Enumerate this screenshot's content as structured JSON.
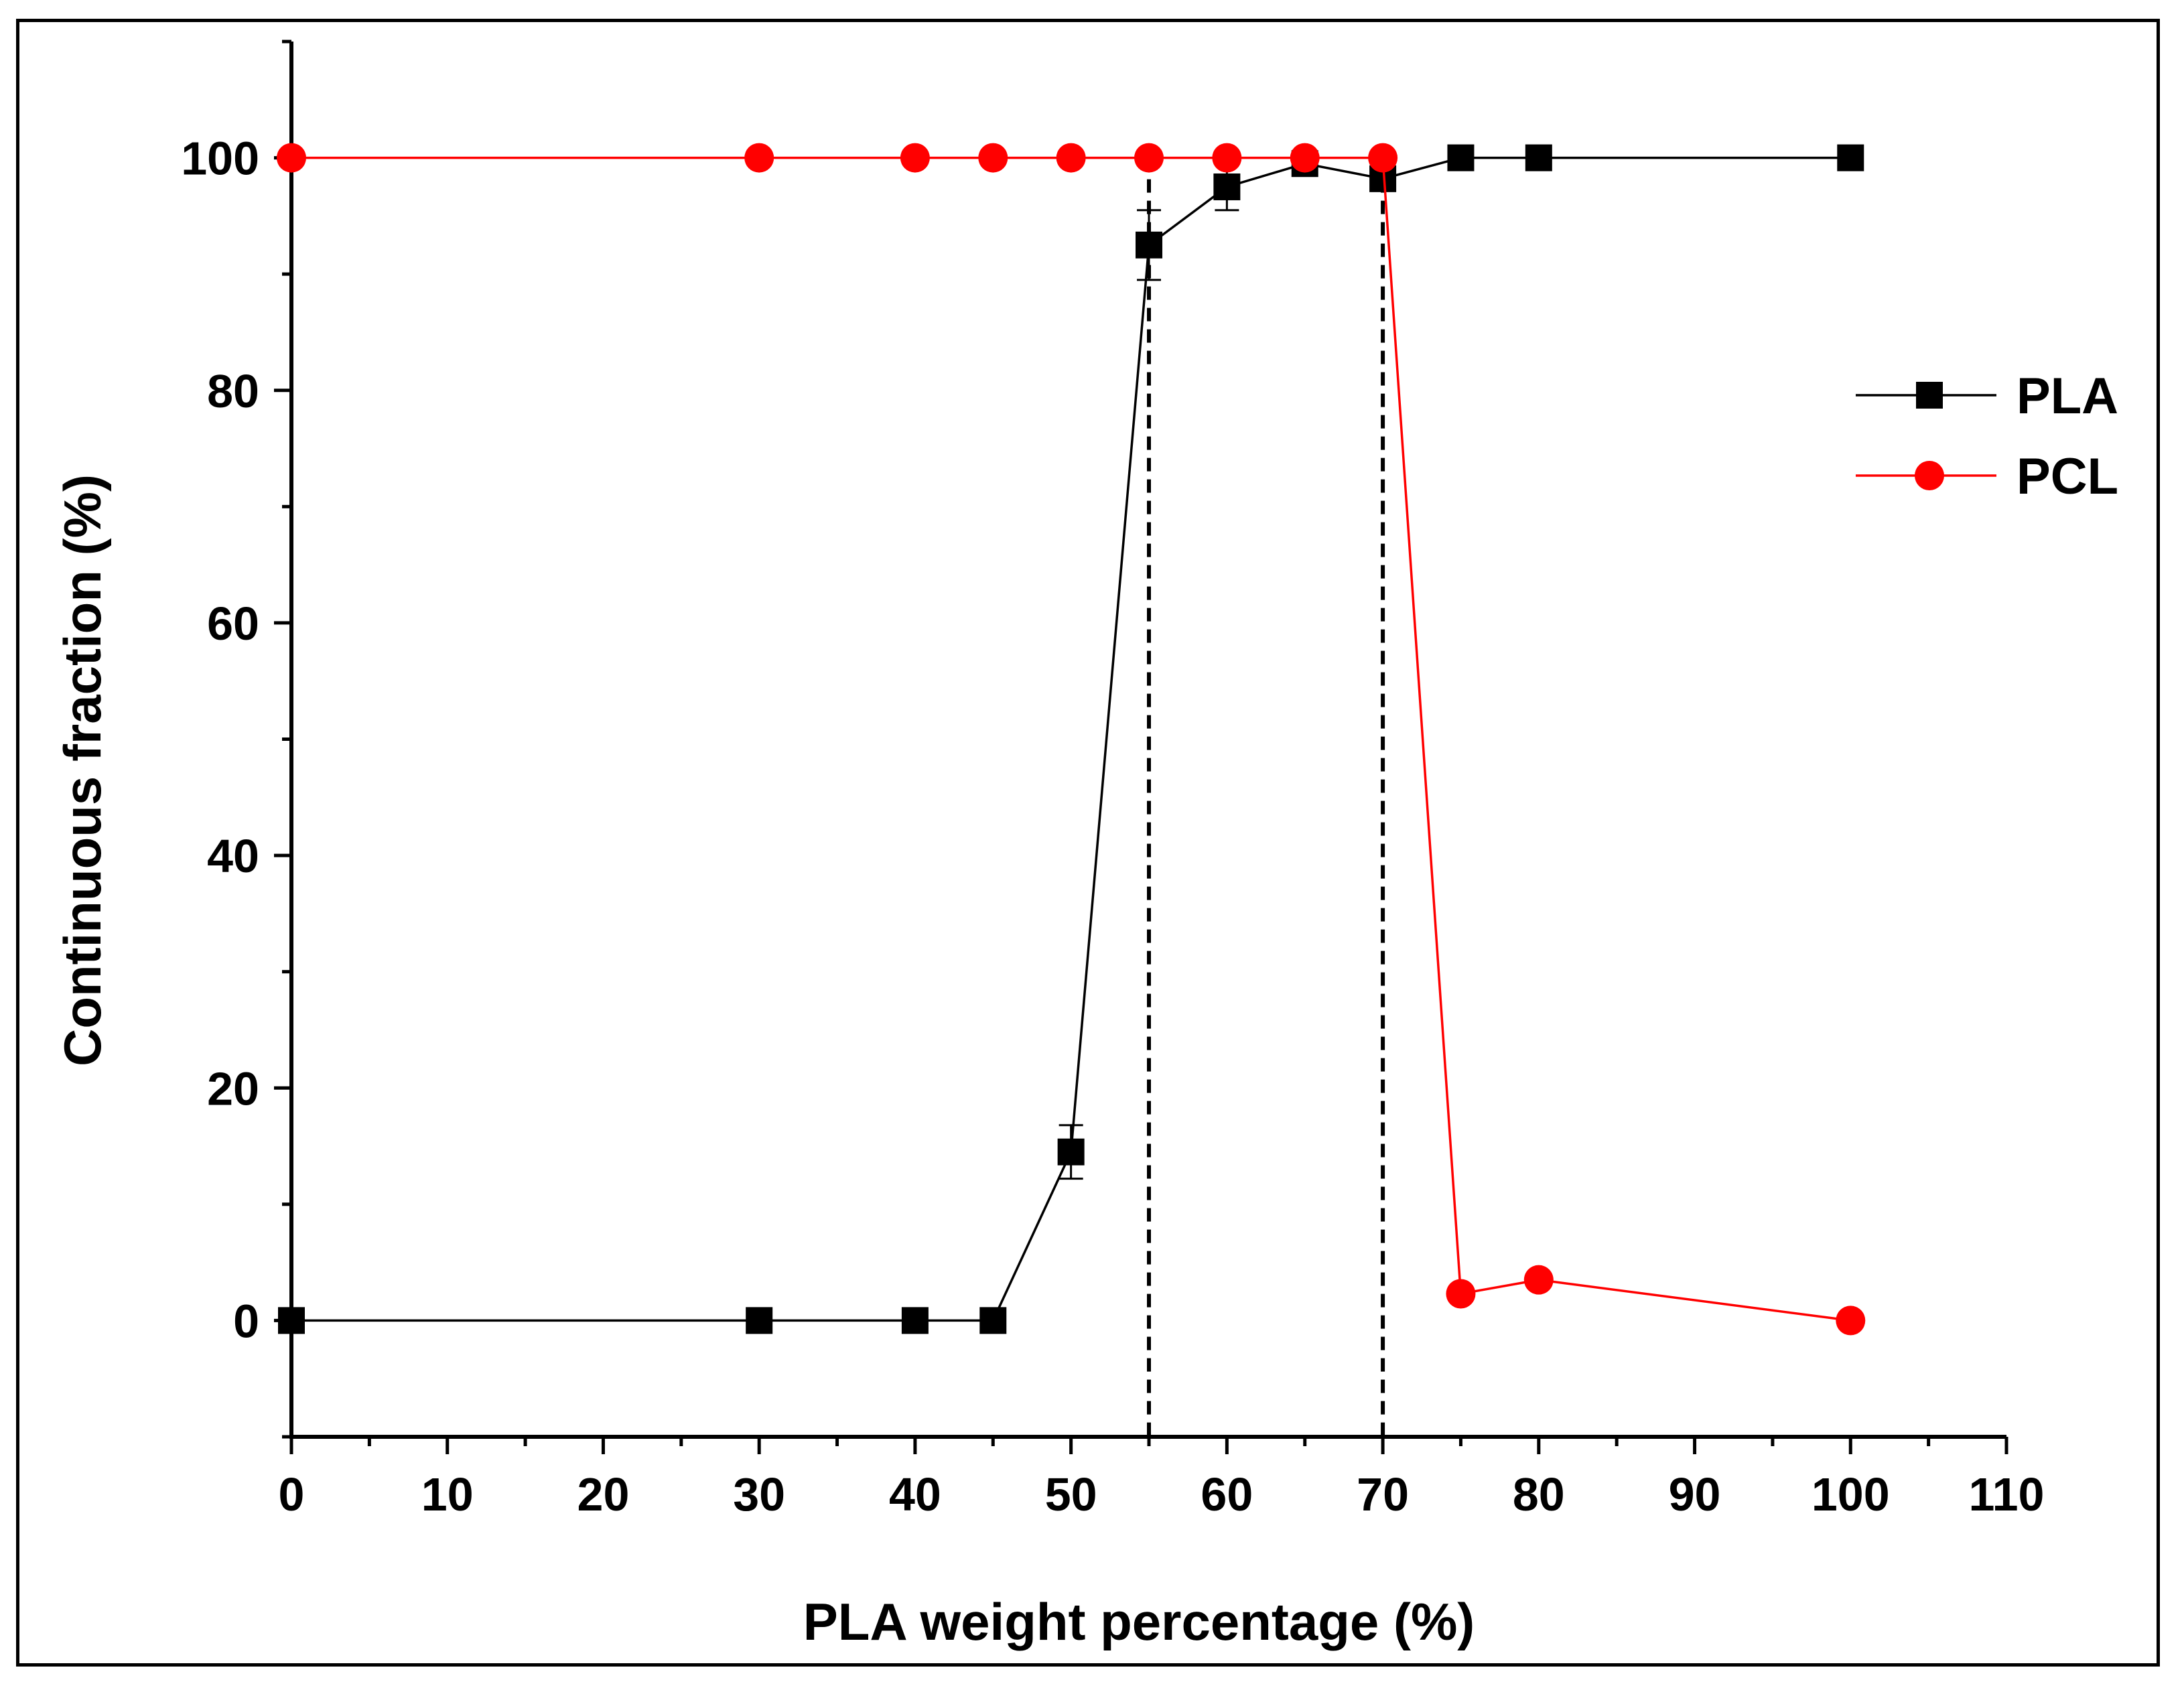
{
  "chart_data": {
    "type": "line",
    "title": "",
    "xlabel": "PLA weight percentage (%)",
    "ylabel": "Continuous fraction (%)",
    "xlim": [
      0,
      110
    ],
    "ylim": [
      -10,
      110
    ],
    "x_ticks": [
      0,
      10,
      20,
      30,
      40,
      50,
      60,
      70,
      80,
      90,
      100,
      110
    ],
    "y_ticks": [
      0,
      20,
      40,
      60,
      80,
      100
    ],
    "grid": false,
    "legend_position": "right",
    "reference_lines": [
      {
        "orientation": "vertical",
        "x": 55,
        "style": "dashed"
      },
      {
        "orientation": "vertical",
        "x": 70,
        "style": "dashed"
      }
    ],
    "series": [
      {
        "name": "PLA",
        "color": "#000000",
        "marker": "square",
        "x": [
          0,
          30,
          40,
          45,
          50,
          55,
          60,
          65,
          70,
          75,
          80,
          100
        ],
        "values": [
          0,
          0,
          0,
          0,
          14.5,
          92.5,
          97.5,
          99.5,
          98.2,
          100,
          100,
          100
        ],
        "errors": [
          0,
          0,
          0,
          0,
          2.3,
          3,
          2,
          0.5,
          0,
          0,
          0,
          0
        ]
      },
      {
        "name": "PCL",
        "color": "#ff0000",
        "marker": "circle",
        "x": [
          0,
          30,
          40,
          45,
          50,
          55,
          60,
          65,
          70,
          75,
          80,
          100
        ],
        "values": [
          100,
          100,
          100,
          100,
          100,
          100,
          100,
          100,
          100,
          2.3,
          3.5,
          0
        ]
      }
    ]
  }
}
